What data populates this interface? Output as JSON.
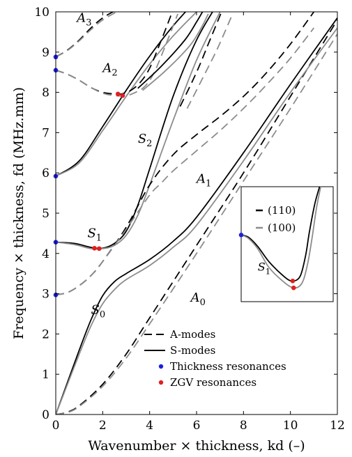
{
  "chart_data": [
    {
      "type": "line",
      "xlabel": "Wavenumber × thickness, kd (–)",
      "ylabel": "Frequency × thickness, fd (MHz.mm)",
      "xlim": [
        0,
        12
      ],
      "ylim": [
        0,
        10
      ],
      "x_ticks": [
        "0",
        "2",
        "4",
        "6",
        "8",
        "10",
        "12"
      ],
      "y_ticks": [
        "0",
        "1",
        "2",
        "3",
        "4",
        "5",
        "6",
        "7",
        "8",
        "9",
        "10"
      ],
      "grid": false,
      "legend": {
        "placement": "bottom-center",
        "entries": [
          {
            "label": "A-modes",
            "style": "dashed"
          },
          {
            "label": "S-modes",
            "style": "solid"
          },
          {
            "label": "Thickness resonances",
            "marker": "dot",
            "color": "#1f1fe0"
          },
          {
            "label": "ZGV resonances",
            "marker": "dot",
            "color": "#e02020"
          }
        ]
      },
      "mode_labels": [
        {
          "text": "A3",
          "base": "A",
          "sub": "3",
          "x": 0.9,
          "y": 9.75
        },
        {
          "text": "A2",
          "base": "A",
          "sub": "2",
          "x": 2.0,
          "y": 8.5
        },
        {
          "text": "S2",
          "base": "S",
          "sub": "2",
          "x": 3.5,
          "y": 6.75
        },
        {
          "text": "A1",
          "base": "A",
          "sub": "1",
          "x": 6.0,
          "y": 5.75
        },
        {
          "text": "S1",
          "base": "S",
          "sub": "1",
          "x": 1.35,
          "y": 4.4
        },
        {
          "text": "S0",
          "base": "S",
          "sub": "0",
          "x": 1.5,
          "y": 2.5
        },
        {
          "text": "A0",
          "base": "A",
          "sub": "0",
          "x": 5.75,
          "y": 2.8
        }
      ],
      "series": [
        {
          "mode": "A0",
          "family": "A",
          "orientation": "(110)",
          "x": [
            0,
            0.5,
            1,
            2,
            3,
            4,
            6,
            8,
            10,
            12
          ],
          "y": [
            0,
            0.06,
            0.22,
            0.75,
            1.5,
            2.4,
            4.2,
            6.0,
            7.9,
            9.8
          ]
        },
        {
          "mode": "A0",
          "family": "A",
          "orientation": "(100)",
          "x": [
            0,
            0.5,
            1,
            2,
            3,
            4,
            6,
            8,
            10,
            12
          ],
          "y": [
            0,
            0.05,
            0.2,
            0.7,
            1.4,
            2.25,
            4.0,
            5.8,
            7.6,
            9.45
          ]
        },
        {
          "mode": "S0",
          "family": "S",
          "orientation": "(110)",
          "x": [
            0,
            0.5,
            1,
            1.5,
            2,
            2.5,
            3,
            4,
            5,
            6,
            8,
            10,
            12
          ],
          "y": [
            0,
            0.8,
            1.6,
            2.35,
            2.95,
            3.3,
            3.5,
            3.85,
            4.3,
            4.9,
            6.5,
            8.2,
            9.85
          ]
        },
        {
          "mode": "S0",
          "family": "S",
          "orientation": "(100)",
          "x": [
            0,
            0.5,
            1,
            1.5,
            2,
            2.5,
            3,
            4,
            5,
            6,
            8,
            10,
            12
          ],
          "y": [
            0,
            0.75,
            1.5,
            2.2,
            2.75,
            3.1,
            3.35,
            3.7,
            4.15,
            4.7,
            6.3,
            8.0,
            9.6
          ]
        },
        {
          "mode": "S1",
          "family": "S",
          "orientation": "(110)",
          "x": [
            0,
            0.8,
            1.5,
            2,
            2.5,
            3,
            3.5,
            4,
            5,
            6,
            7
          ],
          "y": [
            4.28,
            4.25,
            4.15,
            4.13,
            4.25,
            4.55,
            5.2,
            6.1,
            7.9,
            9.3,
            10.3
          ]
        },
        {
          "mode": "S1",
          "family": "S",
          "orientation": "(100)",
          "x": [
            0,
            0.8,
            1.5,
            2,
            2.5,
            3,
            3.5,
            4,
            5,
            6,
            7
          ],
          "y": [
            4.28,
            4.22,
            4.12,
            4.12,
            4.2,
            4.45,
            4.95,
            5.7,
            7.3,
            8.8,
            10.0
          ]
        },
        {
          "mode": "A1",
          "family": "A",
          "orientation": "(110)",
          "x": [
            0,
            0.5,
            1,
            1.5,
            2,
            3,
            4,
            5,
            6,
            7,
            8,
            9,
            10,
            11
          ],
          "y": [
            2.97,
            3.03,
            3.2,
            3.45,
            3.8,
            4.65,
            5.7,
            6.45,
            6.95,
            7.4,
            7.9,
            8.5,
            9.2,
            10.0
          ]
        },
        {
          "mode": "A1",
          "family": "A",
          "orientation": "(100)",
          "x": [
            0,
            0.5,
            1,
            1.5,
            2,
            3,
            4,
            4.5,
            5,
            6,
            7,
            8,
            9,
            10,
            11
          ],
          "y": [
            2.97,
            3.03,
            3.2,
            3.45,
            3.8,
            4.6,
            5.45,
            5.75,
            6.05,
            6.55,
            7.05,
            7.6,
            8.2,
            8.85,
            9.6
          ]
        },
        {
          "mode": "S2",
          "family": "S",
          "orientation": "(110)",
          "x": [
            0,
            1,
            2,
            3,
            4,
            5,
            6
          ],
          "y": [
            5.92,
            6.3,
            7.15,
            8.05,
            8.9,
            9.65,
            10.3
          ]
        },
        {
          "mode": "S2",
          "family": "S",
          "orientation": "(100)",
          "x": [
            0,
            1,
            2,
            3,
            4,
            5,
            6
          ],
          "y": [
            5.92,
            6.25,
            7.05,
            7.9,
            8.7,
            9.4,
            10.0
          ]
        },
        {
          "mode": "A2",
          "family": "A",
          "orientation": "(110)",
          "x": [
            0,
            0.5,
            1,
            1.5,
            2,
            2.5,
            2.8,
            3.2,
            3.6,
            4,
            4.5,
            5
          ],
          "y": [
            8.55,
            8.45,
            8.3,
            8.12,
            8.0,
            7.96,
            7.96,
            8.05,
            8.25,
            8.6,
            9.3,
            10.05
          ]
        },
        {
          "mode": "A2",
          "family": "A",
          "orientation": "(100)",
          "x": [
            0,
            0.5,
            1,
            1.5,
            2,
            2.5,
            3,
            3.4,
            3.8,
            4.2,
            4.7,
            5.2
          ],
          "y": [
            8.55,
            8.45,
            8.3,
            8.12,
            7.98,
            7.92,
            7.92,
            8.0,
            8.15,
            8.5,
            9.2,
            9.95
          ]
        },
        {
          "mode": "A3",
          "family": "A",
          "orientation": "(110)",
          "x": [
            0,
            0.5,
            1,
            1.5,
            2,
            2.6
          ],
          "y": [
            8.88,
            9.05,
            9.3,
            9.6,
            9.85,
            10.05
          ]
        },
        {
          "mode": "A3",
          "family": "A",
          "orientation": "(100)",
          "x": [
            0,
            0.5,
            1,
            1.5,
            2,
            2.6
          ],
          "y": [
            8.88,
            9.04,
            9.28,
            9.56,
            9.8,
            10.0
          ]
        },
        {
          "mode": "S3",
          "family": "S",
          "orientation": "(110)",
          "x": [
            3.5,
            4.5,
            5.5,
            6.0,
            6.3
          ],
          "y": [
            8.1,
            8.65,
            9.3,
            9.75,
            10.05
          ]
        },
        {
          "mode": "S3",
          "family": "S",
          "orientation": "(100)",
          "x": [
            3.7,
            4.7,
            5.7,
            6.2,
            6.5
          ],
          "y": [
            8.05,
            8.55,
            9.15,
            9.6,
            9.95
          ]
        },
        {
          "mode": "A4",
          "family": "A",
          "orientation": "(110)",
          "x": [
            5.3,
            6.0,
            6.5,
            7.1
          ],
          "y": [
            7.65,
            8.5,
            9.2,
            10.05
          ]
        },
        {
          "mode": "A4",
          "family": "A",
          "orientation": "(100)",
          "x": [
            5.6,
            6.3,
            6.9,
            7.5
          ],
          "y": [
            7.6,
            8.4,
            9.1,
            9.9
          ]
        }
      ],
      "thickness_resonances": [
        [
          0,
          2.97
        ],
        [
          0,
          4.28
        ],
        [
          0,
          5.92
        ],
        [
          0,
          8.55
        ],
        [
          0,
          8.88
        ]
      ],
      "zgv_resonances": [
        [
          1.65,
          4.13
        ],
        [
          1.85,
          4.12
        ],
        [
          2.65,
          7.96
        ],
        [
          2.85,
          7.92
        ]
      ]
    },
    {
      "type": "line",
      "role": "inset",
      "legend": {
        "placement": "top-left",
        "entries": [
          {
            "label": "(110)",
            "color": "#000000"
          },
          {
            "label": "(100)",
            "color": "#8c8c8c"
          }
        ]
      },
      "mode_labels": [
        {
          "text": "S1",
          "base": "S",
          "sub": "1",
          "x": 0.18,
          "y": 0.27
        }
      ],
      "series": [
        {
          "mode": "S1",
          "orientation": "(110)",
          "x": [
            0.0,
            0.08,
            0.18,
            0.3,
            0.45,
            0.55,
            0.64,
            0.7,
            0.74,
            0.8,
            0.86
          ],
          "y": [
            0.58,
            0.56,
            0.48,
            0.35,
            0.23,
            0.18,
            0.22,
            0.4,
            0.6,
            0.85,
            1.02
          ]
        },
        {
          "mode": "S1",
          "orientation": "(100)",
          "x": [
            0.0,
            0.08,
            0.18,
            0.3,
            0.45,
            0.57,
            0.66,
            0.72,
            0.77,
            0.82,
            0.87
          ],
          "y": [
            0.58,
            0.55,
            0.46,
            0.3,
            0.18,
            0.12,
            0.16,
            0.32,
            0.55,
            0.82,
            1.02
          ]
        }
      ],
      "thickness_resonances": [
        [
          0.0,
          0.58
        ]
      ],
      "zgv_resonances": [
        [
          0.56,
          0.18
        ],
        [
          0.57,
          0.12
        ]
      ]
    }
  ]
}
